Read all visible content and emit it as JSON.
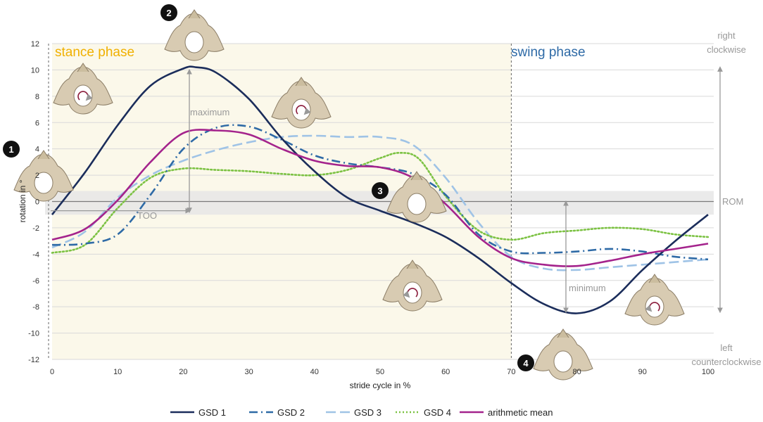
{
  "chart_data": {
    "type": "line",
    "xlabel": "stride cycle in %",
    "ylabel": "rotation in °",
    "xlim": [
      0,
      100
    ],
    "ylim": [
      -12,
      12
    ],
    "x_ticks": [
      0,
      10,
      20,
      30,
      40,
      50,
      60,
      70,
      80,
      90,
      100
    ],
    "y_ticks": [
      12,
      10,
      8,
      6,
      4,
      2,
      0,
      -2,
      -4,
      -6,
      -8,
      -10,
      -12
    ],
    "grid": true,
    "legend_position": "bottom",
    "phases": [
      {
        "label": "stance phase",
        "range": [
          0,
          70
        ],
        "color": "#f0b000",
        "background": "#fbf8ea"
      },
      {
        "label": "swing phase",
        "range": [
          70,
          100
        ],
        "color": "#2e6aa6"
      }
    ],
    "rom_band": [
      -1,
      0.8
    ],
    "right_labels": {
      "top": "right\nclockwise",
      "bottom": "left\ncounterclockwise",
      "rom": "ROM"
    },
    "annotations": {
      "maximum": "maximum",
      "minimum": "minimum",
      "too": "TOO"
    },
    "markers": [
      "1",
      "2",
      "3",
      "4"
    ],
    "series": [
      {
        "name": "GSD 1",
        "color": "#1b2d5b",
        "style": "solid",
        "x": [
          0,
          5,
          10,
          15,
          20,
          22,
          25,
          30,
          35,
          40,
          45,
          50,
          55,
          60,
          65,
          70,
          75,
          80,
          85,
          90,
          95,
          100
        ],
        "y": [
          -1.0,
          2.2,
          5.8,
          8.8,
          10.1,
          10.2,
          9.8,
          7.8,
          4.8,
          2.3,
          0.3,
          -0.7,
          -1.6,
          -2.7,
          -4.3,
          -6.2,
          -7.8,
          -8.5,
          -7.6,
          -5.2,
          -3.0,
          -1.0
        ]
      },
      {
        "name": "GSD 2",
        "color": "#2e6aa6",
        "style": "dashdot",
        "x": [
          0,
          5,
          10,
          15,
          20,
          25,
          30,
          35,
          40,
          45,
          50,
          55,
          60,
          65,
          70,
          75,
          80,
          85,
          90,
          95,
          100
        ],
        "y": [
          -3.3,
          -3.2,
          -2.5,
          0.5,
          4.0,
          5.6,
          5.7,
          4.7,
          3.5,
          2.9,
          2.6,
          2.1,
          0.5,
          -2.5,
          -3.8,
          -3.9,
          -3.8,
          -3.6,
          -3.8,
          -4.2,
          -4.4
        ]
      },
      {
        "name": "GSD 3",
        "color": "#9fc3e6",
        "style": "dashed",
        "x": [
          0,
          5,
          10,
          15,
          20,
          25,
          30,
          35,
          40,
          45,
          50,
          55,
          60,
          65,
          70,
          75,
          80,
          85,
          90,
          95,
          100
        ],
        "y": [
          -3.5,
          -2.3,
          0.3,
          2.0,
          3.1,
          3.9,
          4.5,
          4.9,
          5.0,
          4.9,
          4.9,
          4.3,
          1.8,
          -1.6,
          -4.2,
          -5.1,
          -5.2,
          -5.0,
          -4.8,
          -4.6,
          -4.4
        ]
      },
      {
        "name": "GSD 4",
        "color": "#7cc243",
        "style": "dotted",
        "x": [
          0,
          5,
          10,
          15,
          20,
          25,
          30,
          35,
          40,
          45,
          50,
          53,
          56,
          60,
          65,
          70,
          75,
          80,
          85,
          90,
          95,
          100
        ],
        "y": [
          -3.9,
          -3.3,
          -0.5,
          1.8,
          2.5,
          2.4,
          2.3,
          2.1,
          2.0,
          2.4,
          3.3,
          3.7,
          3.2,
          0.4,
          -2.2,
          -2.9,
          -2.4,
          -2.2,
          -2.0,
          -2.1,
          -2.5,
          -2.7
        ]
      },
      {
        "name": "arithmetic mean",
        "color": "#a4238c",
        "style": "solid",
        "x": [
          0,
          5,
          10,
          15,
          20,
          25,
          30,
          35,
          40,
          45,
          50,
          55,
          60,
          65,
          70,
          75,
          80,
          85,
          90,
          95,
          100
        ],
        "y": [
          -2.9,
          -2.1,
          0.1,
          3.0,
          5.2,
          5.4,
          5.1,
          4.0,
          3.1,
          2.7,
          2.6,
          1.8,
          -0.2,
          -2.7,
          -4.3,
          -4.8,
          -4.9,
          -4.5,
          -4.0,
          -3.6,
          -3.2
        ]
      }
    ]
  }
}
